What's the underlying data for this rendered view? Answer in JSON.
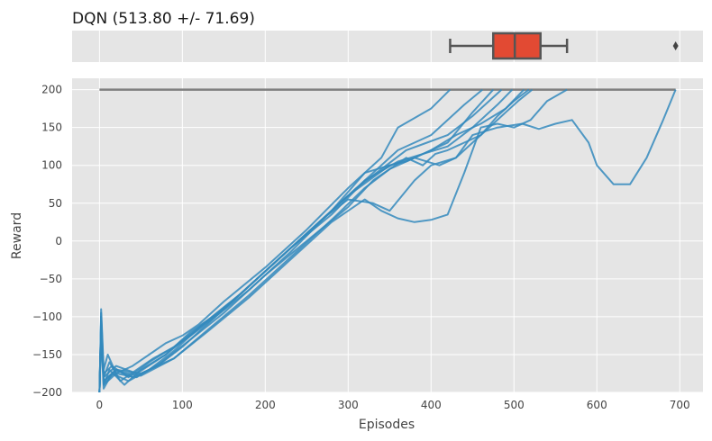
{
  "chart_data": [
    {
      "type": "box",
      "title": "DQN (513.80 +/- 71.69)",
      "orientation": "horizontal",
      "whisker_low": 423,
      "q1": 475,
      "median": 501,
      "q3": 532,
      "whisker_high": 564,
      "outliers": [
        695
      ],
      "box_color": "#E24A33",
      "xlim": [
        -33,
        728
      ],
      "grid": true
    },
    {
      "type": "line",
      "xlabel": "Episodes",
      "ylabel": "Reward",
      "xlim": [
        -33,
        728
      ],
      "ylim": [
        -200,
        215
      ],
      "xticks": [
        0,
        100,
        200,
        300,
        400,
        500,
        600,
        700
      ],
      "yticks": [
        -200,
        -150,
        -100,
        -50,
        0,
        50,
        100,
        150,
        200
      ],
      "grid": true,
      "line_color": "#348ABD",
      "threshold": {
        "y": 200,
        "x": [
          0,
          695
        ],
        "color": "#7f7f7f"
      },
      "series": [
        {
          "x": [
            0,
            2,
            5,
            10,
            20,
            40,
            60,
            80,
            100,
            120,
            150,
            200,
            250,
            300,
            340,
            360,
            400,
            423
          ],
          "y": [
            -200,
            -90,
            -170,
            -150,
            -175,
            -165,
            -150,
            -135,
            -125,
            -110,
            -80,
            -35,
            15,
            70,
            110,
            150,
            175,
            200
          ]
        },
        {
          "x": [
            0,
            2,
            5,
            12,
            25,
            45,
            65,
            90,
            110,
            140,
            180,
            230,
            280,
            320,
            360,
            400,
            440,
            462
          ],
          "y": [
            -200,
            -100,
            -180,
            -160,
            -185,
            -170,
            -155,
            -140,
            -125,
            -100,
            -60,
            -10,
            35,
            80,
            120,
            140,
            180,
            200
          ]
        },
        {
          "x": [
            0,
            2,
            5,
            12,
            30,
            50,
            80,
            110,
            150,
            200,
            250,
            300,
            350,
            380,
            420,
            450,
            475
          ],
          "y": [
            -200,
            -110,
            -190,
            -170,
            -190,
            -170,
            -150,
            -120,
            -90,
            -40,
            10,
            60,
            100,
            110,
            130,
            170,
            200
          ]
        },
        {
          "x": [
            0,
            2,
            5,
            15,
            35,
            60,
            90,
            120,
            160,
            210,
            260,
            310,
            340,
            370,
            395,
            420,
            450,
            470,
            485
          ],
          "y": [
            -200,
            -120,
            -195,
            -175,
            -185,
            -170,
            -145,
            -115,
            -80,
            -30,
            20,
            70,
            95,
            120,
            130,
            140,
            165,
            185,
            200
          ]
        },
        {
          "x": [
            0,
            2,
            5,
            15,
            35,
            60,
            90,
            130,
            170,
            220,
            270,
            320,
            360,
            390,
            420,
            450,
            480,
            498
          ],
          "y": [
            -200,
            -95,
            -175,
            -165,
            -180,
            -160,
            -140,
            -105,
            -70,
            -20,
            30,
            80,
            105,
            115,
            125,
            150,
            180,
            200
          ]
        },
        {
          "x": [
            0,
            2,
            5,
            20,
            40,
            70,
            100,
            140,
            180,
            230,
            280,
            320,
            350,
            370,
            400,
            430,
            460,
            490,
            512
          ],
          "y": [
            -200,
            -105,
            -185,
            -170,
            -180,
            -165,
            -140,
            -100,
            -65,
            -15,
            40,
            90,
            100,
            105,
            120,
            140,
            155,
            175,
            200
          ]
        },
        {
          "x": [
            0,
            2,
            5,
            20,
            45,
            75,
            110,
            150,
            200,
            250,
            300,
            330,
            350,
            370,
            390,
            405,
            420,
            440,
            460,
            480,
            500,
            518
          ],
          "y": [
            -200,
            -115,
            -190,
            -175,
            -180,
            -160,
            -130,
            -95,
            -45,
            0,
            45,
            80,
            95,
            110,
            100,
            115,
            120,
            130,
            140,
            165,
            185,
            200
          ]
        },
        {
          "x": [
            0,
            2,
            5,
            20,
            45,
            80,
            120,
            170,
            220,
            270,
            300,
            330,
            350,
            380,
            400,
            430,
            450,
            470,
            490,
            505,
            522
          ],
          "y": [
            -200,
            -100,
            -180,
            -165,
            -175,
            -150,
            -115,
            -70,
            -20,
            30,
            55,
            50,
            40,
            80,
            100,
            110,
            130,
            150,
            170,
            185,
            200
          ]
        },
        {
          "x": [
            0,
            2,
            5,
            20,
            50,
            90,
            130,
            180,
            230,
            280,
            320,
            340,
            360,
            380,
            400,
            420,
            440,
            460,
            480,
            500,
            520,
            540,
            564
          ],
          "y": [
            -200,
            -108,
            -185,
            -170,
            -175,
            -155,
            -120,
            -75,
            -25,
            25,
            55,
            40,
            30,
            25,
            28,
            35,
            90,
            150,
            155,
            150,
            160,
            185,
            200
          ]
        },
        {
          "x": [
            0,
            2,
            5,
            20,
            50,
            90,
            130,
            180,
            230,
            280,
            320,
            350,
            380,
            410,
            430,
            450,
            480,
            510,
            530,
            550,
            570,
            590,
            600,
            620,
            640,
            660,
            680,
            695
          ],
          "y": [
            -200,
            -112,
            -188,
            -172,
            -178,
            -155,
            -118,
            -72,
            -22,
            28,
            70,
            95,
            110,
            100,
            110,
            140,
            150,
            155,
            148,
            155,
            160,
            130,
            100,
            75,
            75,
            110,
            160,
            200
          ]
        }
      ]
    }
  ]
}
